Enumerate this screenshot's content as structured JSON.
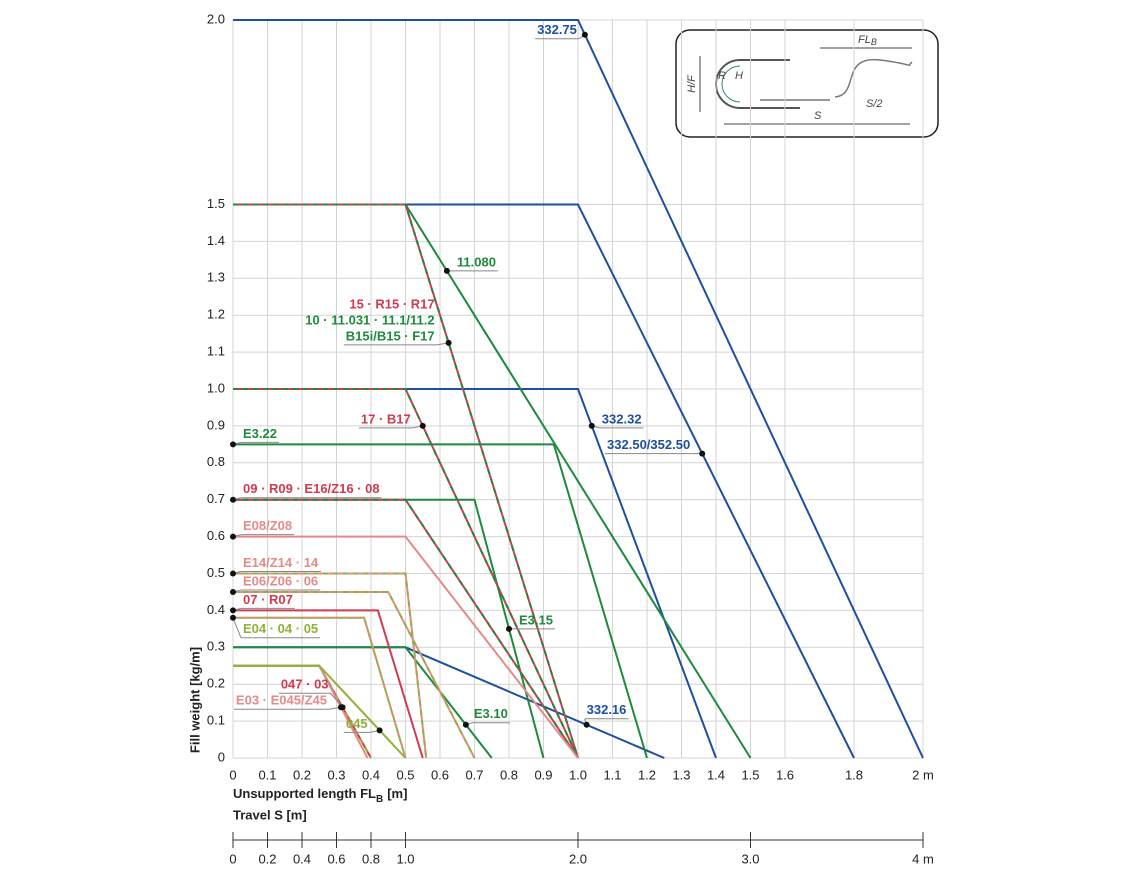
{
  "chart_data": {
    "type": "line",
    "y_label": "Fill weight [kg/m]",
    "x_label": "Unsupported length FL",
    "x_label_sub": "B",
    "x_label_unit": "[m]",
    "xlim": [
      0,
      2
    ],
    "ylim": [
      0,
      2
    ],
    "grid": true,
    "xticks": [
      0,
      0.1,
      0.2,
      0.3,
      0.4,
      0.5,
      0.6,
      0.7,
      0.8,
      0.9,
      {
        "value": 1,
        "label": "1.0"
      },
      1.1,
      1.2,
      1.3,
      1.4,
      1.5,
      1.6,
      1.8,
      {
        "value": 2,
        "label": "2 m"
      }
    ],
    "yticks": [
      0,
      0.1,
      0.2,
      0.3,
      0.4,
      0.5,
      0.6,
      0.7,
      0.8,
      0.9,
      {
        "value": 1,
        "label": "1.0"
      },
      1.1,
      1.2,
      1.3,
      1.4,
      1.5,
      {
        "value": 2,
        "label": "2.0"
      }
    ],
    "travel_axis": {
      "label": "Travel S [m]",
      "xlim": [
        0,
        4
      ],
      "xticks": [
        0,
        0.2,
        0.4,
        0.6,
        0.8,
        {
          "value": 1,
          "label": "1.0"
        },
        {
          "value": 2,
          "label": "2.0"
        },
        {
          "value": 3,
          "label": "3.0"
        },
        {
          "value": 4,
          "label": "4 m"
        }
      ]
    },
    "series": [
      {
        "label": [
          "332.75"
        ],
        "label_colors": [
          "#1e4fa0"
        ],
        "color": "#1e4fa0",
        "x": [
          0,
          1,
          2
        ],
        "values": [
          2,
          2,
          0
        ]
      },
      {
        "label": [
          "332.50/352.50"
        ],
        "label_colors": [
          "#1e4fa0"
        ],
        "color": "#1e4fa0",
        "x": [
          0,
          1,
          1.8
        ],
        "values": [
          1.5,
          1.5,
          0
        ]
      },
      {
        "label": [
          "332.32"
        ],
        "label_colors": [
          "#1e4fa0"
        ],
        "color": "#1e4fa0",
        "x": [
          0,
          1,
          1.4
        ],
        "values": [
          1,
          1,
          0
        ]
      },
      {
        "label": [
          "332.16"
        ],
        "label_colors": [
          "#1e4fa0"
        ],
        "color": "#1e4fa0",
        "x": [
          0,
          0.5,
          1.25
        ],
        "values": [
          0.3,
          0.3,
          0
        ]
      },
      {
        "label": [
          "11.080"
        ],
        "label_colors": [
          "#1f8a3c"
        ],
        "color": "#1f8a3c",
        "x": [
          0,
          0.5,
          1.5
        ],
        "values": [
          1.5,
          1.5,
          0
        ]
      },
      {
        "label": [
          "E3.22"
        ],
        "label_colors": [
          "#1f8a3c"
        ],
        "color": "#1f8a3c",
        "x": [
          0,
          0.93,
          1.2
        ],
        "values": [
          0.85,
          0.85,
          0
        ]
      },
      {
        "label": [
          "E3.15"
        ],
        "label_colors": [
          "#1f8a3c"
        ],
        "color": "#1f8a3c",
        "x": [
          0,
          0.7,
          0.9
        ],
        "values": [
          0.7,
          0.7,
          0
        ]
      },
      {
        "label": [
          "E3.10"
        ],
        "label_colors": [
          "#1f8a3c"
        ],
        "color": "#1f8a3c",
        "x": [
          0,
          0.5,
          0.75
        ],
        "values": [
          0.3,
          0.3,
          0
        ]
      },
      {
        "label": [
          "15 · R15 · R17",
          "10 · 11.031 · 11.1/11.2",
          "B15i/B15 · F17"
        ],
        "label_colors": [
          "#cf3b4f",
          "#1f8a3c",
          "#1f8a3c"
        ],
        "color": "#cf3b4f",
        "color2": "#1f8a3c",
        "x": [
          0,
          0.5,
          1
        ],
        "values": [
          1.5,
          1.5,
          0
        ]
      },
      {
        "label": [
          "17 · B17"
        ],
        "label_colors": [
          "#cf3b4f"
        ],
        "color": "#cf3b4f",
        "color2": "#1f8a3c",
        "x": [
          0,
          0.5,
          1
        ],
        "values": [
          1,
          1,
          0
        ]
      },
      {
        "label": [
          "09 · R09 · E16/Z16 · 08"
        ],
        "label_colors": [
          "#cf3b4f"
        ],
        "color": "#cf3b4f",
        "color2": "#1f8a3c",
        "x": [
          0,
          0.5,
          1
        ],
        "values": [
          0.7,
          0.7,
          0
        ]
      },
      {
        "label": [
          "E08/Z08"
        ],
        "label_colors": [
          "#e58a8a"
        ],
        "color": "#e58a8a",
        "x": [
          0,
          0.5,
          1
        ],
        "values": [
          0.6,
          0.6,
          0
        ]
      },
      {
        "label": [
          "E14/Z14 · 14"
        ],
        "label_colors": [
          "#e58a8a"
        ],
        "color": "#e58a8a",
        "color2": "#8fb03a",
        "x": [
          0,
          0.5,
          0.56
        ],
        "values": [
          0.5,
          0.5,
          0
        ]
      },
      {
        "label": [
          "E06/Z06 · 06"
        ],
        "label_colors": [
          "#e58a8a"
        ],
        "color": "#e58a8a",
        "color2": "#8fb03a",
        "x": [
          0,
          0.45,
          0.7
        ],
        "values": [
          0.45,
          0.45,
          0
        ]
      },
      {
        "label": [
          "07 · R07"
        ],
        "label_colors": [
          "#cf3b4f"
        ],
        "color": "#cf3b4f",
        "x": [
          0,
          0.42,
          0.55
        ],
        "values": [
          0.4,
          0.4,
          0
        ]
      },
      {
        "label": [
          "E04 · 04 · 05"
        ],
        "label_colors": [
          "#8fb03a"
        ],
        "color": "#8fb03a",
        "color2": "#e58a8a",
        "x": [
          0,
          0.38,
          0.5
        ],
        "values": [
          0.38,
          0.38,
          0
        ]
      },
      {
        "label": [
          "047 · 03"
        ],
        "label_colors": [
          "#cf3b4f"
        ],
        "color": "#cf3b4f",
        "color2": "#8fb03a",
        "x": [
          0,
          0.25,
          0.4
        ],
        "values": [
          0.25,
          0.25,
          0
        ]
      },
      {
        "label": [
          "E03 · E045/Z45"
        ],
        "label_colors": [
          "#e58a8a"
        ],
        "color": "#e58a8a",
        "x": [
          0,
          0.25,
          0.39
        ],
        "values": [
          0.25,
          0.25,
          0
        ]
      },
      {
        "label": [
          "045"
        ],
        "label_colors": [
          "#8fb03a"
        ],
        "color": "#8fb03a",
        "x": [
          0,
          0.25,
          0.5
        ],
        "values": [
          0.25,
          0.25,
          0
        ]
      }
    ]
  },
  "inset": {
    "fl": "FL",
    "fl_sub": "B",
    "r": "R",
    "h": "H",
    "hf": "H/F",
    "s": "S",
    "s2": "S/2"
  }
}
